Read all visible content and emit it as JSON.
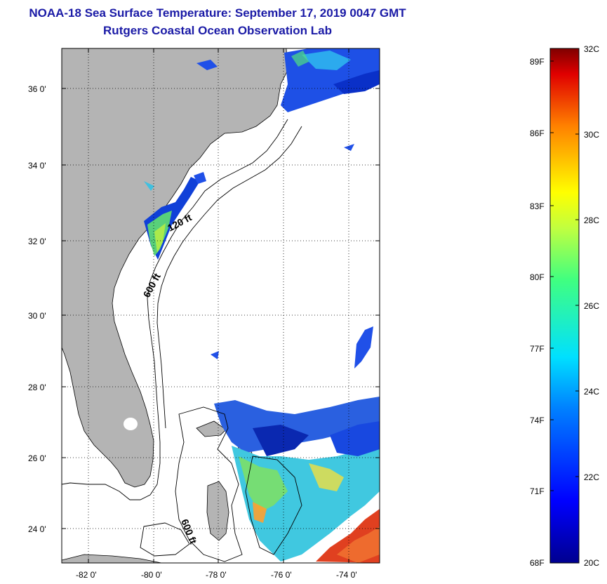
{
  "title": {
    "line1": "NOAA-18 Sea Surface Temperature:  September 17, 2019 0047 GMT",
    "line2": "Rutgers Coastal Ocean Observation Lab"
  },
  "map": {
    "lon_range": [
      -83,
      -73
    ],
    "lat_range": [
      23,
      37
    ],
    "lat_ticks": [
      {
        "value": 24,
        "label": "24 0'"
      },
      {
        "value": 26,
        "label": "26 0'"
      },
      {
        "value": 28,
        "label": "28 0'"
      },
      {
        "value": 30,
        "label": "30 0'"
      },
      {
        "value": 32,
        "label": "32 0'"
      },
      {
        "value": 34,
        "label": "34 0'"
      },
      {
        "value": 36,
        "label": "36 0'"
      }
    ],
    "lon_ticks": [
      {
        "value": -82,
        "label": "-82 0'"
      },
      {
        "value": -80,
        "label": "-80 0'"
      },
      {
        "value": -78,
        "label": "-78 0'"
      },
      {
        "value": -76,
        "label": "-76 0'"
      },
      {
        "value": -74,
        "label": "-74 0'"
      }
    ],
    "contour_labels": [
      {
        "text": "120 ft"
      },
      {
        "text": "600 ft"
      },
      {
        "text": "600 ft"
      }
    ],
    "colors": {
      "land": "#b4b4b4",
      "ocean_nodata": "#ffffff",
      "grid": "#000000"
    }
  },
  "colorbar": {
    "celsius_labels": [
      "32C",
      "30C",
      "28C",
      "26C",
      "24C",
      "22C",
      "20C"
    ],
    "fahrenheit_labels": [
      "89F",
      "86F",
      "83F",
      "80F",
      "77F",
      "74F",
      "71F",
      "68F"
    ],
    "min_c": 20,
    "max_c": 32
  }
}
